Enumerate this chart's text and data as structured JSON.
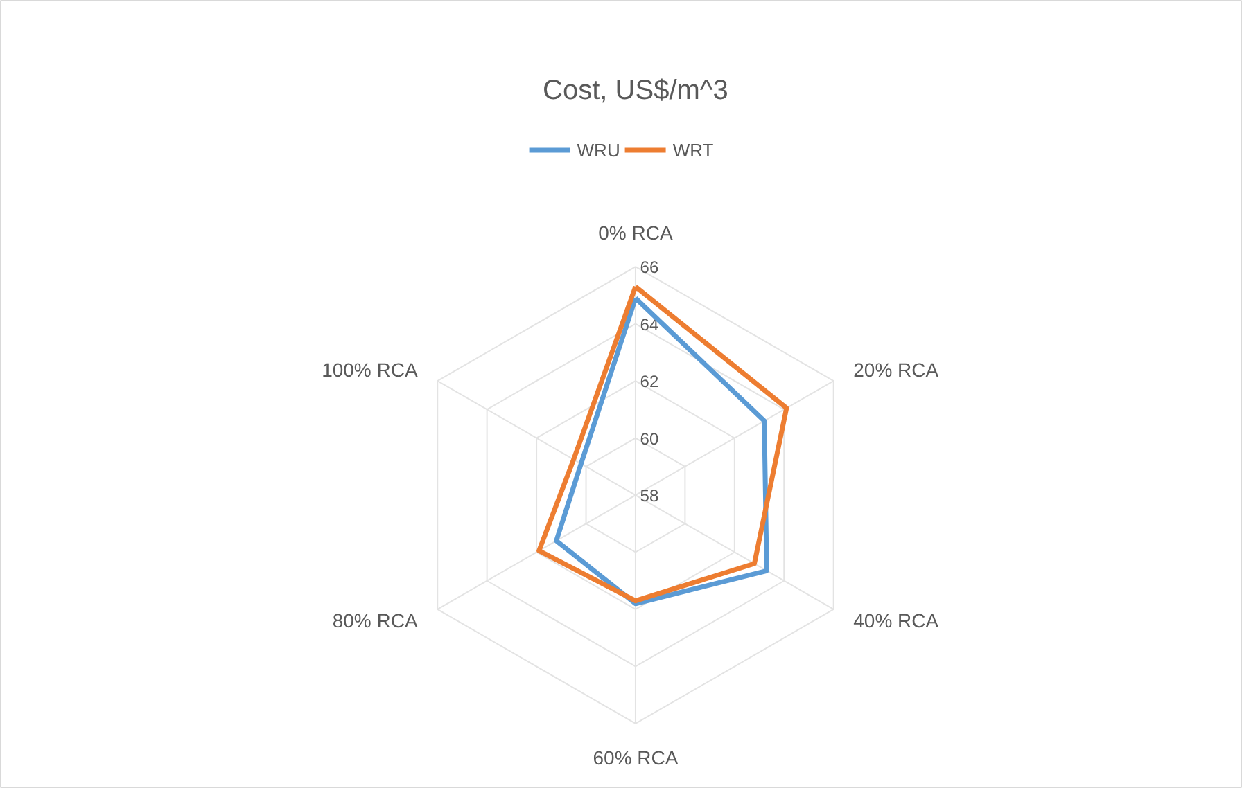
{
  "chart_data": {
    "type": "radar",
    "title": "Cost, US$/m^3",
    "categories": [
      "0% RCA",
      "20% RCA",
      "40% RCA",
      "60% RCA",
      "80% RCA",
      "100% RCA"
    ],
    "series": [
      {
        "name": "WRU",
        "color": "#5b9bd5",
        "values": [
          64.9,
          63.2,
          63.3,
          61.8,
          61.2,
          60.2
        ]
      },
      {
        "name": "WRT",
        "color": "#ed7d31",
        "values": [
          65.3,
          64.1,
          62.8,
          61.7,
          61.9,
          60.5
        ]
      }
    ],
    "ylim": [
      58,
      66
    ],
    "yticks": [
      58,
      60,
      62,
      64,
      66
    ],
    "grid": true,
    "legend": "top",
    "marker": "none"
  }
}
